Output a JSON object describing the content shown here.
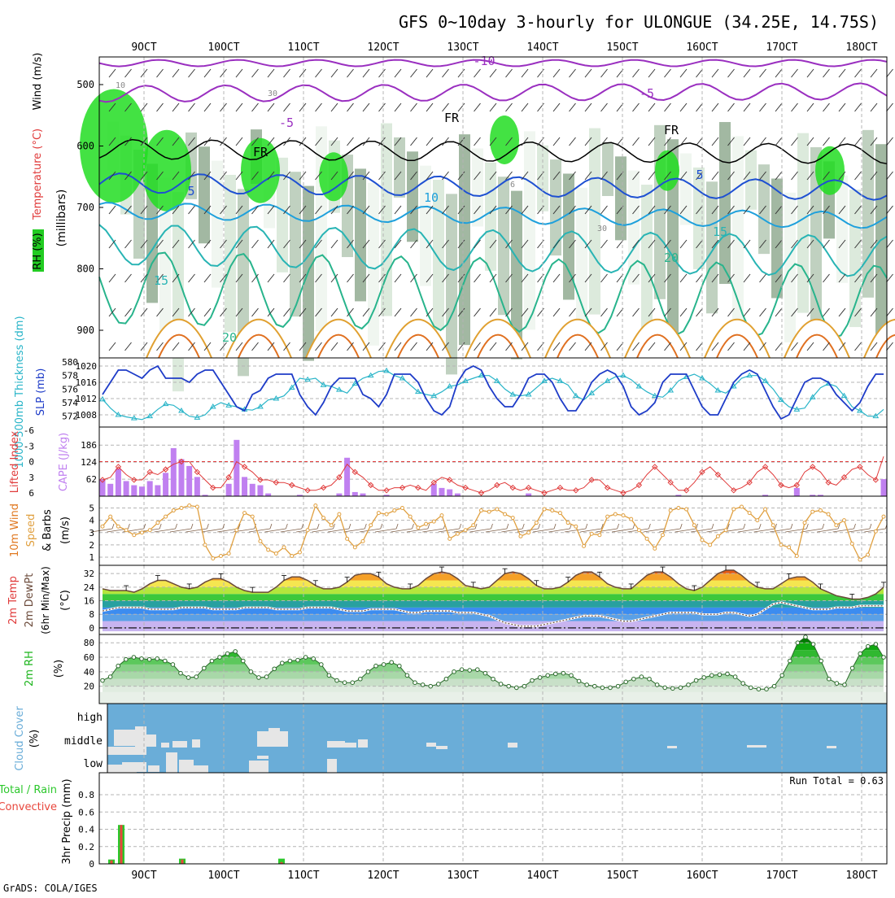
{
  "title": "GFS 0~10day 3-hourly for ULONGUE (34.25E, 14.75S)",
  "footer": "GrADS: COLA/IGES",
  "x_ticks": [
    "9OCT",
    "10OCT",
    "11OCT",
    "12OCT",
    "13OCT",
    "14OCT",
    "15OCT",
    "16OCT",
    "17OCT",
    "18OCT"
  ],
  "colors": {
    "grid": "#b4b4b4",
    "sky": "#6aadd8",
    "slp": "#1e3cc8",
    "thickness": "#28b4c8",
    "cape": "#c080f0",
    "lifted": "#e03a3a",
    "wind": "#e0a040",
    "rh_green": "#1cb41c",
    "rain": "#2cc82c",
    "conv": "#e8463c",
    "temp_line": "#6b4a3a"
  },
  "chart_data": [
    {
      "panel": "vertical-profile",
      "type": "heatmap",
      "ylabel_parts": [
        "RH (%)",
        "Temperature (°C)",
        "Wind (m/s)"
      ],
      "ylabel_unit": "(millibars)",
      "y_ticks": [
        500,
        600,
        700,
        800,
        900
      ],
      "contour_labels": [
        "-10",
        "-5",
        "-5",
        "FR",
        "FR",
        "FR",
        "5",
        "5",
        "10",
        "15",
        "15",
        "20",
        "20",
        "10",
        "30",
        "30",
        "6"
      ]
    },
    {
      "panel": "slp-thickness",
      "type": "line",
      "ylabel_left": "1000-500mb Thickness (dm)",
      "ylabel_right": "SLP (mb)",
      "y_ticks_left": [
        572,
        574,
        576,
        578,
        580
      ],
      "y_ticks_right": [
        1008,
        1012,
        1016,
        1020
      ],
      "series": [
        {
          "name": "SLP (mb)",
          "axis": "right",
          "values": [
            1013,
            1016,
            1019,
            1019,
            1018,
            1017,
            1019,
            1020,
            1017,
            1017,
            1017,
            1016,
            1018,
            1019,
            1019,
            1016,
            1013,
            1010,
            1009,
            1013,
            1014,
            1017,
            1018,
            1018,
            1018,
            1013,
            1010,
            1008,
            1011,
            1015,
            1017,
            1017,
            1017,
            1013,
            1012,
            1010,
            1013,
            1018,
            1018,
            1018,
            1016,
            1012,
            1009,
            1008,
            1010,
            1016,
            1019,
            1020,
            1019,
            1015,
            1012,
            1010,
            1010,
            1013,
            1017,
            1018,
            1018,
            1016,
            1012,
            1009,
            1009,
            1012,
            1016,
            1018,
            1019,
            1018,
            1015,
            1010,
            1008,
            1009,
            1011,
            1016,
            1018,
            1018,
            1018,
            1014,
            1010,
            1008,
            1008,
            1012,
            1016,
            1018,
            1019,
            1018,
            1014,
            1010,
            1007,
            1008,
            1012,
            1016,
            1017,
            1017,
            1016,
            1013,
            1011,
            1009,
            1011,
            1015,
            1018,
            1018
          ]
        },
        {
          "name": "1000-500mb Thickness (dm)",
          "axis": "left",
          "values": [
            574.5,
            573.2,
            572.2,
            571.9,
            571.7,
            571.5,
            572.0,
            573.0,
            573.8,
            573.6,
            572.8,
            572.0,
            571.8,
            572.2,
            573.4,
            574.0,
            573.6,
            573.4,
            573.0,
            572.9,
            573.4,
            574.4,
            574.6,
            575.0,
            576.2,
            577.6,
            577.4,
            577.6,
            576.6,
            576.4,
            575.9,
            575.4,
            576.8,
            577.6,
            578.0,
            578.6,
            578.7,
            578.0,
            577.6,
            576.6,
            575.6,
            575.2,
            575.0,
            575.6,
            576.4,
            576.6,
            577.2,
            577.6,
            578.0,
            578.0,
            577.2,
            576.0,
            575.2,
            575.0,
            575.2,
            576.2,
            577.2,
            577.6,
            577.2,
            576.6,
            575.0,
            574.4,
            575.4,
            576.4,
            577.2,
            577.8,
            578.0,
            577.4,
            576.4,
            575.6,
            575.0,
            574.8,
            575.8,
            577.2,
            577.8,
            578.2,
            577.6,
            576.8,
            575.8,
            575.4,
            576.4,
            577.6,
            578.0,
            578.0,
            577.2,
            576.0,
            574.4,
            573.4,
            573.0,
            573.2,
            574.8,
            576.2,
            576.8,
            576.4,
            575.0,
            573.4,
            572.8,
            572.0,
            572.0,
            573.0
          ]
        }
      ]
    },
    {
      "panel": "cape-li",
      "type": "bar",
      "ylabel_left": "Lifted Index",
      "ylabel_right": "CAPE (J/kg)",
      "y_ticks_left": [
        -6,
        -3,
        0,
        3,
        6
      ],
      "y_ticks_right": [
        62,
        124,
        186
      ],
      "series": [
        {
          "name": "CAPE (J/kg)",
          "values": [
            62,
            45,
            100,
            55,
            40,
            35,
            55,
            40,
            85,
            175,
            135,
            110,
            70,
            5,
            0,
            0,
            45,
            205,
            70,
            45,
            40,
            10,
            0,
            0,
            0,
            5,
            0,
            0,
            0,
            0,
            10,
            140,
            15,
            10,
            0,
            0,
            5,
            0,
            0,
            0,
            0,
            0,
            45,
            30,
            25,
            10,
            0,
            0,
            0,
            0,
            0,
            0,
            0,
            0,
            10,
            0,
            0,
            0,
            0,
            0,
            0,
            0,
            0,
            0,
            0,
            0,
            0,
            0,
            0,
            0,
            0,
            0,
            0,
            5,
            0,
            0,
            0,
            0,
            0,
            0,
            0,
            0,
            0,
            0,
            5,
            0,
            0,
            0,
            30,
            0,
            5,
            5,
            0,
            0,
            0,
            0,
            0,
            0,
            0,
            62
          ]
        },
        {
          "name": "Lifted Index",
          "values": [
            3.5,
            3.0,
            1.0,
            2.5,
            3.5,
            3.5,
            2.0,
            2.5,
            1.5,
            0.5,
            0.0,
            0.0,
            2.0,
            3.5,
            5.0,
            5.0,
            3.0,
            0.0,
            1.0,
            2.0,
            3.5,
            3.5,
            4.0,
            4.0,
            4.5,
            5.0,
            5.5,
            5.5,
            5.0,
            4.5,
            3.0,
            0.5,
            2.0,
            3.0,
            4.5,
            5.5,
            5.5,
            5.0,
            5.0,
            4.5,
            5.0,
            5.5,
            4.0,
            3.0,
            3.5,
            4.5,
            5.0,
            5.5,
            6.0,
            5.5,
            4.5,
            4.0,
            5.0,
            5.5,
            5.0,
            5.5,
            6.0,
            5.5,
            5.0,
            5.5,
            5.5,
            5.0,
            3.5,
            3.5,
            5.0,
            5.5,
            6.0,
            5.5,
            4.5,
            2.5,
            1.0,
            2.5,
            4.0,
            5.5,
            5.5,
            4.0,
            2.0,
            1.0,
            2.5,
            4.0,
            5.5,
            5.0,
            4.0,
            2.0,
            1.0,
            2.5,
            4.5,
            5.0,
            4.5,
            2.0,
            1.0,
            2.0,
            4.0,
            4.5,
            3.0,
            1.5,
            1.0,
            2.5,
            3.5,
            -1.0
          ]
        }
      ]
    },
    {
      "panel": "10m-wind",
      "type": "line",
      "ylabel": "10m Wind Speed & Barbs (m/s)",
      "y_ticks": [
        1,
        2,
        3,
        4,
        5
      ],
      "series": [
        {
          "name": "Speed",
          "values": [
            3.5,
            4.3,
            3.5,
            3.2,
            2.8,
            3.0,
            3.2,
            3.8,
            4.3,
            4.8,
            5.0,
            5.2,
            5.1,
            2.0,
            0.9,
            1.1,
            1.3,
            3.2,
            4.6,
            4.3,
            2.3,
            1.6,
            1.3,
            1.8,
            1.1,
            1.4,
            3.2,
            5.2,
            4.2,
            3.6,
            4.5,
            2.5,
            1.8,
            2.3,
            3.6,
            4.6,
            4.5,
            4.8,
            5.0,
            4.3,
            3.4,
            3.7,
            3.9,
            4.4,
            2.5,
            2.9,
            3.2,
            3.6,
            4.8,
            4.7,
            4.9,
            4.5,
            4.2,
            2.7,
            3.0,
            3.8,
            4.9,
            4.8,
            4.6,
            3.8,
            3.5,
            1.9,
            2.9,
            2.8,
            4.3,
            4.5,
            4.4,
            4.1,
            3.2,
            2.5,
            1.7,
            2.8,
            4.8,
            5.0,
            4.9,
            3.6,
            2.4,
            2.0,
            2.7,
            3.2,
            4.9,
            5.1,
            4.6,
            4.0,
            4.9,
            3.6,
            2.0,
            1.8,
            1.1,
            3.8,
            4.7,
            4.8,
            4.5,
            3.6,
            4.0,
            2.1,
            0.8,
            1.2,
            3.1,
            4.3
          ]
        }
      ]
    },
    {
      "panel": "2m-temp",
      "type": "area",
      "ylabel": "2m Temp 2m DewPt (6hr Min/Max) (°C)",
      "y_ticks": [
        0,
        8,
        16,
        24,
        32
      ],
      "series": [
        {
          "name": "2m Temp",
          "values": [
            23,
            22,
            22,
            22,
            21,
            23,
            26,
            28,
            28,
            26,
            24,
            23,
            24,
            27,
            29,
            29,
            27,
            24,
            22,
            21,
            21,
            21,
            24,
            28,
            30,
            30,
            28,
            25,
            23,
            23,
            24,
            27,
            31,
            32,
            32,
            30,
            26,
            24,
            23,
            23,
            25,
            29,
            32,
            33,
            32,
            29,
            25,
            24,
            23,
            24,
            28,
            32,
            33,
            32,
            29,
            25,
            23,
            23,
            24,
            27,
            31,
            33,
            33,
            30,
            26,
            24,
            23,
            23,
            27,
            31,
            33,
            33,
            30,
            26,
            23,
            22,
            24,
            28,
            32,
            34,
            34,
            31,
            27,
            24,
            23,
            23,
            26,
            29,
            30,
            30,
            27,
            23,
            21,
            19,
            18,
            17,
            17,
            18,
            20,
            24
          ]
        },
        {
          "name": "2m DewPt",
          "values": [
            10,
            11,
            12,
            12,
            12,
            12,
            11,
            11,
            11,
            11,
            12,
            12,
            12,
            12,
            11,
            11,
            11,
            11,
            12,
            12,
            12,
            12,
            11,
            11,
            11,
            11,
            12,
            12,
            12,
            12,
            11,
            10,
            10,
            10,
            11,
            11,
            11,
            11,
            10,
            9,
            9,
            10,
            10,
            10,
            10,
            9,
            9,
            9,
            8,
            7,
            5,
            3,
            2,
            1,
            1,
            1,
            2,
            3,
            4,
            5,
            6,
            7,
            7,
            7,
            6,
            5,
            4,
            4,
            5,
            6,
            7,
            8,
            9,
            9,
            9,
            9,
            8,
            8,
            8,
            9,
            9,
            8,
            7,
            8,
            11,
            14,
            15,
            14,
            13,
            12,
            11,
            11,
            11,
            12,
            12,
            12,
            13,
            13,
            13,
            13
          ]
        }
      ]
    },
    {
      "panel": "2m-rh",
      "type": "area",
      "ylabel": "2m RH (%)",
      "y_ticks": [
        20,
        40,
        60,
        80
      ],
      "series": [
        {
          "name": "2m RH",
          "values": [
            28,
            33,
            48,
            57,
            60,
            58,
            57,
            58,
            55,
            50,
            38,
            32,
            33,
            45,
            55,
            60,
            65,
            68,
            55,
            40,
            32,
            33,
            44,
            52,
            55,
            56,
            60,
            58,
            50,
            35,
            28,
            25,
            25,
            30,
            40,
            48,
            50,
            53,
            48,
            35,
            25,
            22,
            20,
            23,
            30,
            40,
            43,
            42,
            43,
            38,
            30,
            23,
            20,
            18,
            20,
            28,
            32,
            35,
            37,
            38,
            35,
            27,
            22,
            20,
            18,
            18,
            20,
            26,
            30,
            33,
            30,
            22,
            18,
            17,
            18,
            22,
            28,
            32,
            35,
            36,
            37,
            33,
            24,
            18,
            16,
            16,
            20,
            35,
            55,
            80,
            88,
            78,
            55,
            30,
            24,
            22,
            45,
            65,
            75,
            78,
            60
          ]
        }
      ]
    },
    {
      "panel": "cloud-cover",
      "type": "heatmap",
      "ylabel": "Cloud Cover (%)",
      "levels": [
        "high",
        "middle",
        "low"
      ]
    },
    {
      "panel": "precip",
      "type": "bar",
      "ylabel": "3hr Precip (mm)",
      "ylabel_left": "Total / Rain Convective",
      "y_ticks": [
        0,
        0.2,
        0.4,
        0.6,
        0.8
      ],
      "annotation": "Run Total = 0.63",
      "series": [
        {
          "name": "Total / Rain",
          "values": [
            0.05,
            0.45,
            0,
            0,
            0,
            0,
            0,
            0,
            0,
            0,
            0,
            0.06,
            0,
            0,
            0,
            0,
            0,
            0,
            0,
            0,
            0,
            0,
            0,
            0.06
          ]
        },
        {
          "name": "Convective",
          "values": [
            0.04,
            0.45,
            0,
            0,
            0,
            0,
            0,
            0,
            0,
            0,
            0,
            0.05,
            0,
            0,
            0,
            0,
            0,
            0,
            0,
            0,
            0,
            0,
            0,
            0.02
          ]
        }
      ]
    }
  ]
}
